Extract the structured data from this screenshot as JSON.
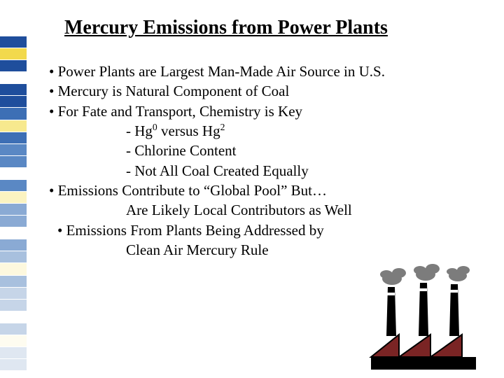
{
  "title": "Mercury Emissions from Power Plants",
  "bullets": {
    "b1": "• Power Plants are Largest Man-Made Air Source in U.S.",
    "b2": "• Mercury is Natural Component of Coal",
    "b3": "• For Fate and Transport, Chemistry is Key",
    "s1a": "- Hg",
    "s1sup1": "0",
    "s1b": " versus Hg",
    "s1sup2": "2",
    "s2": "- Chlorine Content",
    "s3": "- Not All Coal Created Equally",
    "b4": "• Emissions Contribute to “Global Pool” But…",
    "s4": "Are Likely Local Contributors as Well",
    "b5": "• Emissions From Plants Being Addressed by",
    "s5": "Clean Air Mercury Rule"
  },
  "bar_colors": [
    "#1f4e9c",
    "#f2d94c",
    "#1f4e9c",
    "#ffffff",
    "#1f4e9c",
    "#1f4e9c",
    "#3d6fb5",
    "#f7e98e",
    "#3d6fb5",
    "#5a88c4",
    "#5a88c4",
    "#ffffff",
    "#5a88c4",
    "#fbf3c1",
    "#8aaad4",
    "#8aaad4",
    "#ffffff",
    "#8aaad4",
    "#a8c0de",
    "#fdf8de",
    "#a8c0de",
    "#c6d5e8",
    "#c6d5e8",
    "#ffffff",
    "#c6d5e8",
    "#fefcf0",
    "#dfe7f1",
    "#dfe7f1"
  ],
  "factory": {
    "building_color": "#000000",
    "smoke_color": "#555555",
    "roof_color": "#8b2b2b"
  }
}
